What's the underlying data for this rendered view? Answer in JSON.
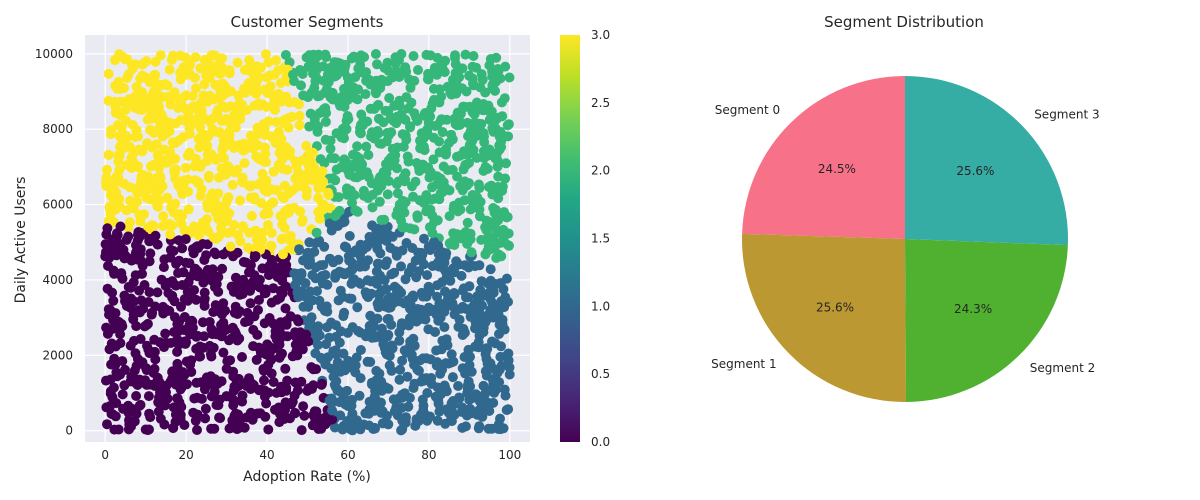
{
  "chart_data": [
    {
      "type": "scatter",
      "title": "Customer Segments",
      "xlabel": "Adoption Rate (%)",
      "ylabel": "Daily Active Users",
      "xlim": [
        -5,
        105
      ],
      "ylim": [
        -300,
        10500
      ],
      "xticks": [
        0,
        20,
        40,
        60,
        80,
        100
      ],
      "yticks": [
        0,
        2000,
        4000,
        6000,
        8000,
        10000
      ],
      "grid": true,
      "background": "#eaeaf2",
      "colormap": "viridis",
      "colorbar": {
        "range": [
          0,
          3
        ],
        "ticks": [
          "0.0",
          "0.5",
          "1.0",
          "1.5",
          "2.0",
          "2.5",
          "3.0"
        ]
      },
      "clusters": [
        {
          "value": 0,
          "color": "#440154",
          "x_range": [
            0,
            57
          ],
          "y_range": [
            0,
            5500
          ],
          "boundary_description": "lower-left"
        },
        {
          "value": 1,
          "color": "#31688e",
          "x_range": [
            45,
            100
          ],
          "y_range": [
            0,
            5900
          ],
          "boundary_description": "lower-right"
        },
        {
          "value": 2,
          "color": "#35b779",
          "x_range": [
            43,
            100
          ],
          "y_range": [
            4300,
            10000
          ],
          "boundary_description": "upper-right"
        },
        {
          "value": 3,
          "color": "#fde725",
          "x_range": [
            0,
            57
          ],
          "y_range": [
            4500,
            10000
          ],
          "boundary_description": "upper-left"
        }
      ]
    },
    {
      "type": "pie",
      "title": "Segment Distribution",
      "slices": [
        {
          "label": "Segment 0",
          "value": 24.5,
          "pct_label": "24.5%",
          "color": "#f77189"
        },
        {
          "label": "Segment 1",
          "value": 25.6,
          "pct_label": "25.6%",
          "color": "#bb9832"
        },
        {
          "label": "Segment 2",
          "value": 24.3,
          "pct_label": "24.3%",
          "color": "#50b131"
        },
        {
          "label": "Segment 3",
          "value": 25.6,
          "pct_label": "25.6%",
          "color": "#36ada4"
        }
      ],
      "start_angle_deg": 90,
      "direction": "counterclockwise"
    }
  ]
}
